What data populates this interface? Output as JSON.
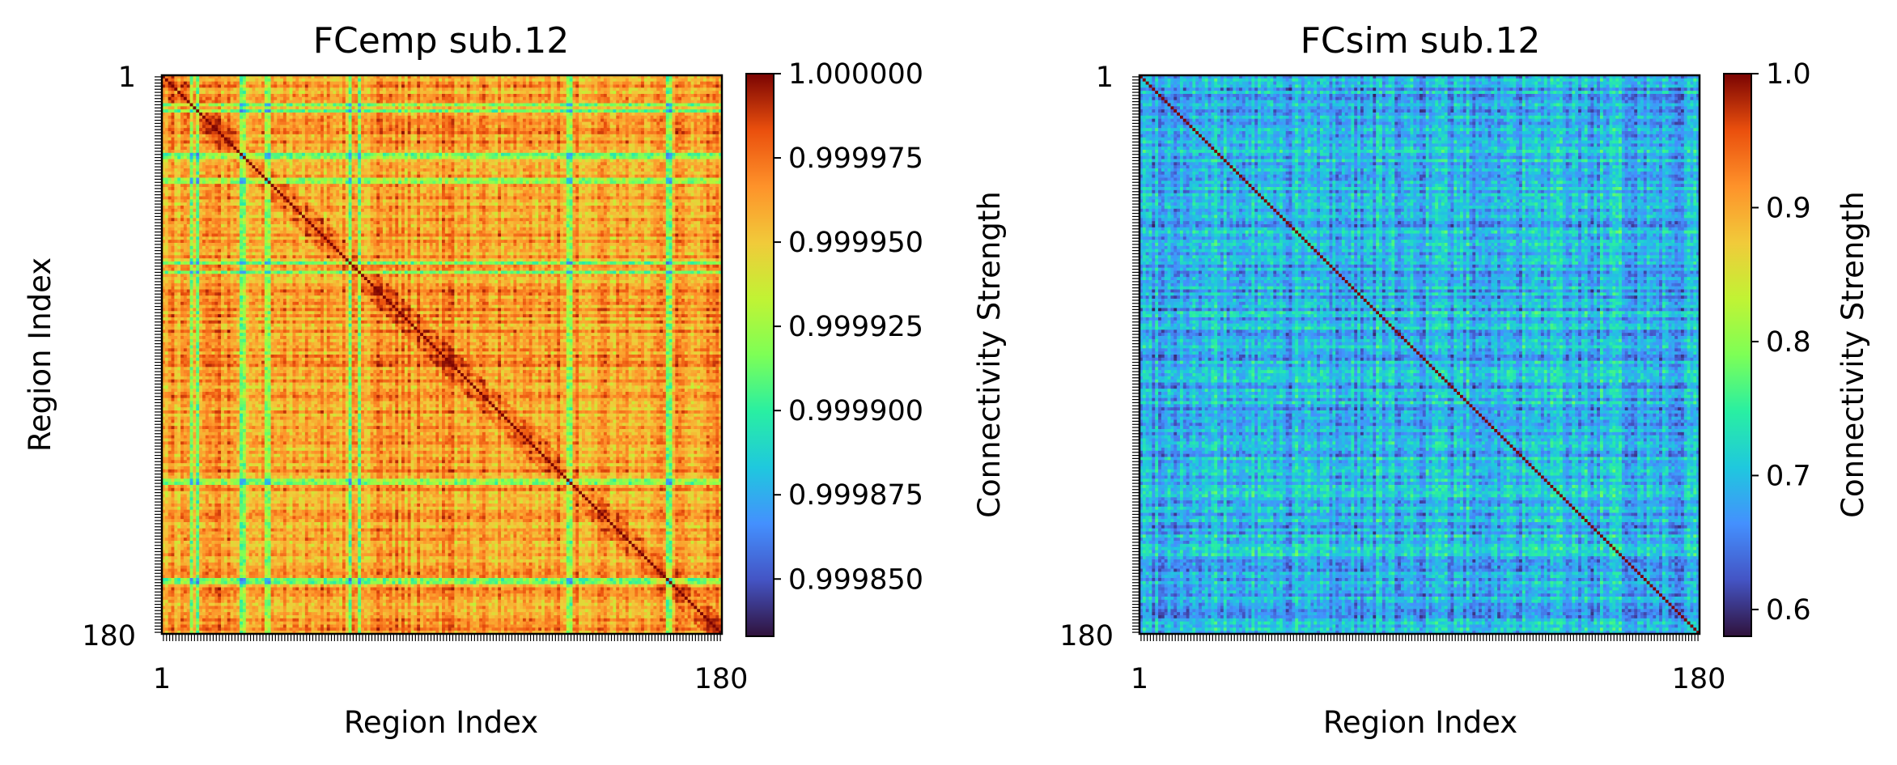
{
  "chart_data": [
    {
      "type": "heatmap",
      "title": "FCemp sub.12",
      "xlabel": "Region Index",
      "ylabel": "Region Index",
      "n_regions": 180,
      "x_ticks": [
        "1",
        "180"
      ],
      "y_ticks": [
        "1",
        "180"
      ],
      "colormap": "turbo",
      "colorbar": {
        "label": "Connectivity Strength",
        "range": [
          0.999833,
          1.0
        ],
        "ticks": [
          {
            "value": 1.0,
            "label": "1.000000"
          },
          {
            "value": 0.999975,
            "label": "0.999975"
          },
          {
            "value": 0.99995,
            "label": "0.999950"
          },
          {
            "value": 0.999925,
            "label": "0.999925"
          },
          {
            "value": 0.9999,
            "label": "0.999900"
          },
          {
            "value": 0.999875,
            "label": "0.999875"
          },
          {
            "value": 0.99985,
            "label": "0.999850"
          }
        ]
      },
      "diagonal_value": 1.0,
      "typical_offdiagonal_range": [
        0.99994,
        0.99999
      ],
      "low_connectivity_regions": [
        9,
        11,
        25,
        26,
        33,
        34,
        60,
        63,
        130,
        131,
        162,
        163
      ]
    },
    {
      "type": "heatmap",
      "title": "FCsim sub.12",
      "xlabel": "Region Index",
      "ylabel": "",
      "n_regions": 180,
      "x_ticks": [
        "1",
        "180"
      ],
      "y_ticks": [
        "1",
        "180"
      ],
      "colormap": "turbo",
      "colorbar": {
        "label": "Connectivity Strength",
        "range": [
          0.58,
          1.0
        ],
        "ticks": [
          {
            "value": 1.0,
            "label": "1.0"
          },
          {
            "value": 0.9,
            "label": "0.9"
          },
          {
            "value": 0.8,
            "label": "0.8"
          },
          {
            "value": 0.7,
            "label": "0.7"
          },
          {
            "value": 0.6,
            "label": "0.6"
          }
        ]
      },
      "diagonal_value": 1.0,
      "typical_offdiagonal_range": [
        0.62,
        0.76
      ]
    }
  ]
}
